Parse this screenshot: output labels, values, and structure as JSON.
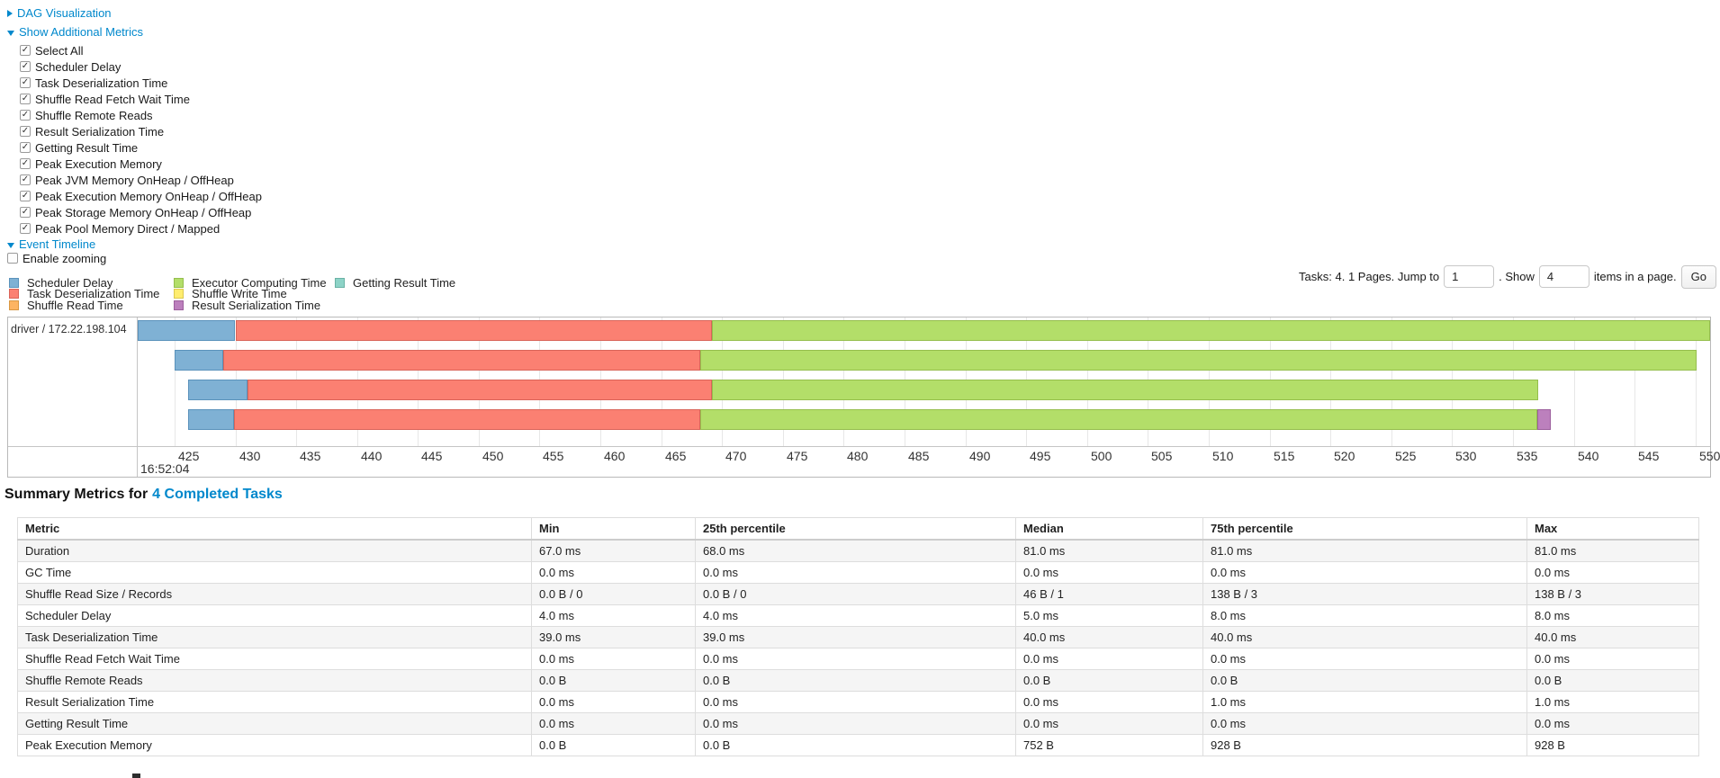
{
  "page": {
    "link_color": "#0088cc"
  },
  "controls": {
    "dag_visualization": {
      "label": "DAG Visualization",
      "state": "collapsed"
    },
    "show_additional_metrics": {
      "label": "Show Additional Metrics",
      "state": "expanded"
    },
    "metric_checkboxes": [
      {
        "label": "Select All",
        "checked": true
      },
      {
        "label": "Scheduler Delay",
        "checked": true
      },
      {
        "label": "Task Deserialization Time",
        "checked": true
      },
      {
        "label": "Shuffle Read Fetch Wait Time",
        "checked": true
      },
      {
        "label": "Shuffle Remote Reads",
        "checked": true
      },
      {
        "label": "Result Serialization Time",
        "checked": true
      },
      {
        "label": "Getting Result Time",
        "checked": true
      },
      {
        "label": "Peak Execution Memory",
        "checked": true
      },
      {
        "label": "Peak JVM Memory OnHeap / OffHeap",
        "checked": true
      },
      {
        "label": "Peak Execution Memory OnHeap / OffHeap",
        "checked": true
      },
      {
        "label": "Peak Storage Memory OnHeap / OffHeap",
        "checked": true
      },
      {
        "label": "Peak Pool Memory Direct / Mapped",
        "checked": true
      }
    ],
    "event_timeline": {
      "label": "Event Timeline",
      "state": "expanded"
    },
    "enable_zooming": {
      "label": "Enable zooming",
      "checked": false
    }
  },
  "segment_colors": {
    "scheduler_delay": {
      "fill": "#7FB1D4",
      "border": "#5A92BB"
    },
    "task_deserialization": {
      "fill": "#FB8072",
      "border": "#D96459"
    },
    "shuffle_read": {
      "fill": "#FDB462",
      "border": "#D99844"
    },
    "executor_computing": {
      "fill": "#B3DE69",
      "border": "#95BE4D"
    },
    "shuffle_write": {
      "fill": "#FFED6F",
      "border": "#DCC94F"
    },
    "result_serialization": {
      "fill": "#BC80BD",
      "border": "#9C5F9D"
    },
    "getting_result": {
      "fill": "#8DD3C7",
      "border": "#6AB2A5"
    }
  },
  "legend": {
    "columns": [
      [
        {
          "metric": "scheduler_delay",
          "label": "Scheduler Delay"
        },
        {
          "metric": "task_deserialization",
          "label": "Task Deserialization Time"
        },
        {
          "metric": "shuffle_read",
          "label": "Shuffle Read Time"
        }
      ],
      [
        {
          "metric": "executor_computing",
          "label": "Executor Computing Time"
        },
        {
          "metric": "shuffle_write",
          "label": "Shuffle Write Time"
        },
        {
          "metric": "result_serialization",
          "label": "Result Serialization Time"
        }
      ],
      [
        {
          "metric": "getting_result",
          "label": "Getting Result Time"
        }
      ]
    ]
  },
  "pagination": {
    "summary_text": "Tasks: 4. 1 Pages. Jump to",
    "jump_value": "1",
    "show_text": ". Show",
    "page_size_value": "4",
    "suffix_text": "items in a page.",
    "go_label": "Go"
  },
  "chart_data": {
    "type": "timeline",
    "title": "Event Timeline",
    "group_label": "driver / 172.22.198.104",
    "x_axis": {
      "unit": "ms within second 16:52:04",
      "major_label": "16:52:04",
      "window_start": 421.9,
      "window_end": 551.2,
      "ticks": [
        425,
        430,
        435,
        440,
        445,
        450,
        455,
        460,
        465,
        470,
        475,
        480,
        485,
        490,
        495,
        500,
        505,
        510,
        515,
        520,
        525,
        530,
        535,
        540,
        545,
        550
      ]
    },
    "tasks": [
      {
        "name": "task-row-1",
        "segments": [
          {
            "metric": "scheduler_delay",
            "start": 422.0,
            "end": 430.0
          },
          {
            "metric": "task_deserialization",
            "start": 430.0,
            "end": 469.2
          },
          {
            "metric": "executor_computing",
            "start": 469.2,
            "end": 551.2
          }
        ]
      },
      {
        "name": "task-row-2",
        "segments": [
          {
            "metric": "scheduler_delay",
            "start": 425.0,
            "end": 429.0
          },
          {
            "metric": "task_deserialization",
            "start": 429.0,
            "end": 468.2
          },
          {
            "metric": "executor_computing",
            "start": 468.2,
            "end": 550.1
          }
        ]
      },
      {
        "name": "task-row-3",
        "segments": [
          {
            "metric": "scheduler_delay",
            "start": 426.1,
            "end": 431.0
          },
          {
            "metric": "task_deserialization",
            "start": 431.0,
            "end": 469.2
          },
          {
            "metric": "executor_computing",
            "start": 469.2,
            "end": 537.1
          }
        ]
      },
      {
        "name": "task-row-4",
        "segments": [
          {
            "metric": "scheduler_delay",
            "start": 426.1,
            "end": 429.9
          },
          {
            "metric": "task_deserialization",
            "start": 429.9,
            "end": 468.2
          },
          {
            "metric": "executor_computing",
            "start": 468.2,
            "end": 537.0
          },
          {
            "metric": "result_serialization",
            "start": 537.0,
            "end": 538.1
          }
        ]
      }
    ]
  },
  "summary_metrics": {
    "heading_prefix": "Summary Metrics for",
    "heading_link": "4 Completed Tasks",
    "columns": [
      "Metric",
      "Min",
      "25th percentile",
      "Median",
      "75th percentile",
      "Max"
    ],
    "rows": [
      [
        "Duration",
        "67.0 ms",
        "68.0 ms",
        "81.0 ms",
        "81.0 ms",
        "81.0 ms"
      ],
      [
        "GC Time",
        "0.0 ms",
        "0.0 ms",
        "0.0 ms",
        "0.0 ms",
        "0.0 ms"
      ],
      [
        "Shuffle Read Size / Records",
        "0.0 B / 0",
        "0.0 B / 0",
        "46 B / 1",
        "138 B / 3",
        "138 B / 3"
      ],
      [
        "Scheduler Delay",
        "4.0 ms",
        "4.0 ms",
        "5.0 ms",
        "8.0 ms",
        "8.0 ms"
      ],
      [
        "Task Deserialization Time",
        "39.0 ms",
        "39.0 ms",
        "40.0 ms",
        "40.0 ms",
        "40.0 ms"
      ],
      [
        "Shuffle Read Fetch Wait Time",
        "0.0 ms",
        "0.0 ms",
        "0.0 ms",
        "0.0 ms",
        "0.0 ms"
      ],
      [
        "Shuffle Remote Reads",
        "0.0 B",
        "0.0 B",
        "0.0 B",
        "0.0 B",
        "0.0 B"
      ],
      [
        "Result Serialization Time",
        "0.0 ms",
        "0.0 ms",
        "0.0 ms",
        "1.0 ms",
        "1.0 ms"
      ],
      [
        "Getting Result Time",
        "0.0 ms",
        "0.0 ms",
        "0.0 ms",
        "0.0 ms",
        "0.0 ms"
      ],
      [
        "Peak Execution Memory",
        "0.0 B",
        "0.0 B",
        "752 B",
        "928 B",
        "928 B"
      ]
    ]
  }
}
